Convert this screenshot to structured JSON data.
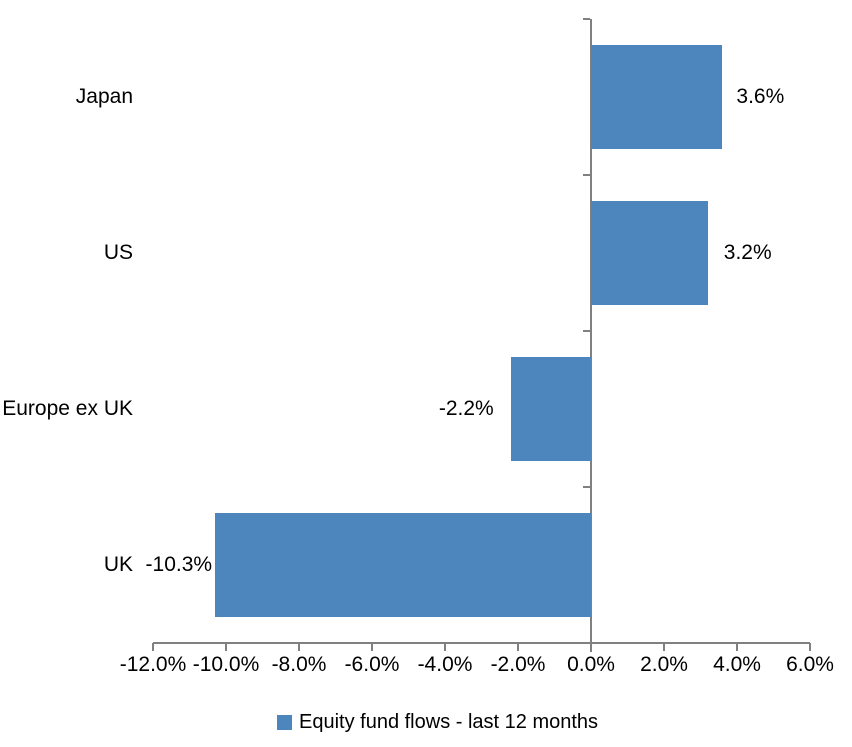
{
  "chart_data": {
    "type": "bar",
    "orientation": "horizontal",
    "title": "",
    "categories": [
      "Japan",
      "US",
      "Europe ex UK",
      "UK"
    ],
    "series": [
      {
        "name": "Equity fund flows - last 12 months",
        "values": [
          3.6,
          3.2,
          -2.2,
          -10.3
        ],
        "data_labels": [
          "3.6%",
          "3.2%",
          "-2.2%",
          "-10.3%"
        ],
        "color": "#4D86BC"
      }
    ],
    "xlabel": "",
    "ylabel": "",
    "xlim": [
      -12,
      6
    ],
    "x_tick_values": [
      -12,
      -10,
      -8,
      -6,
      -4,
      -2,
      0,
      2,
      4,
      6
    ],
    "x_tick_labels": [
      "-12.0%",
      "-10.0%",
      "-8.0%",
      "-6.0%",
      "-4.0%",
      "-2.0%",
      "0.0%",
      "2.0%",
      "4.0%",
      "6.0%"
    ],
    "grid": false,
    "axis_color": "#808080",
    "text_color": "#000000",
    "legend_position": "bottom",
    "legend": [
      {
        "label": "Equity fund flows - last 12 months",
        "color": "#4D86BC"
      }
    ]
  }
}
